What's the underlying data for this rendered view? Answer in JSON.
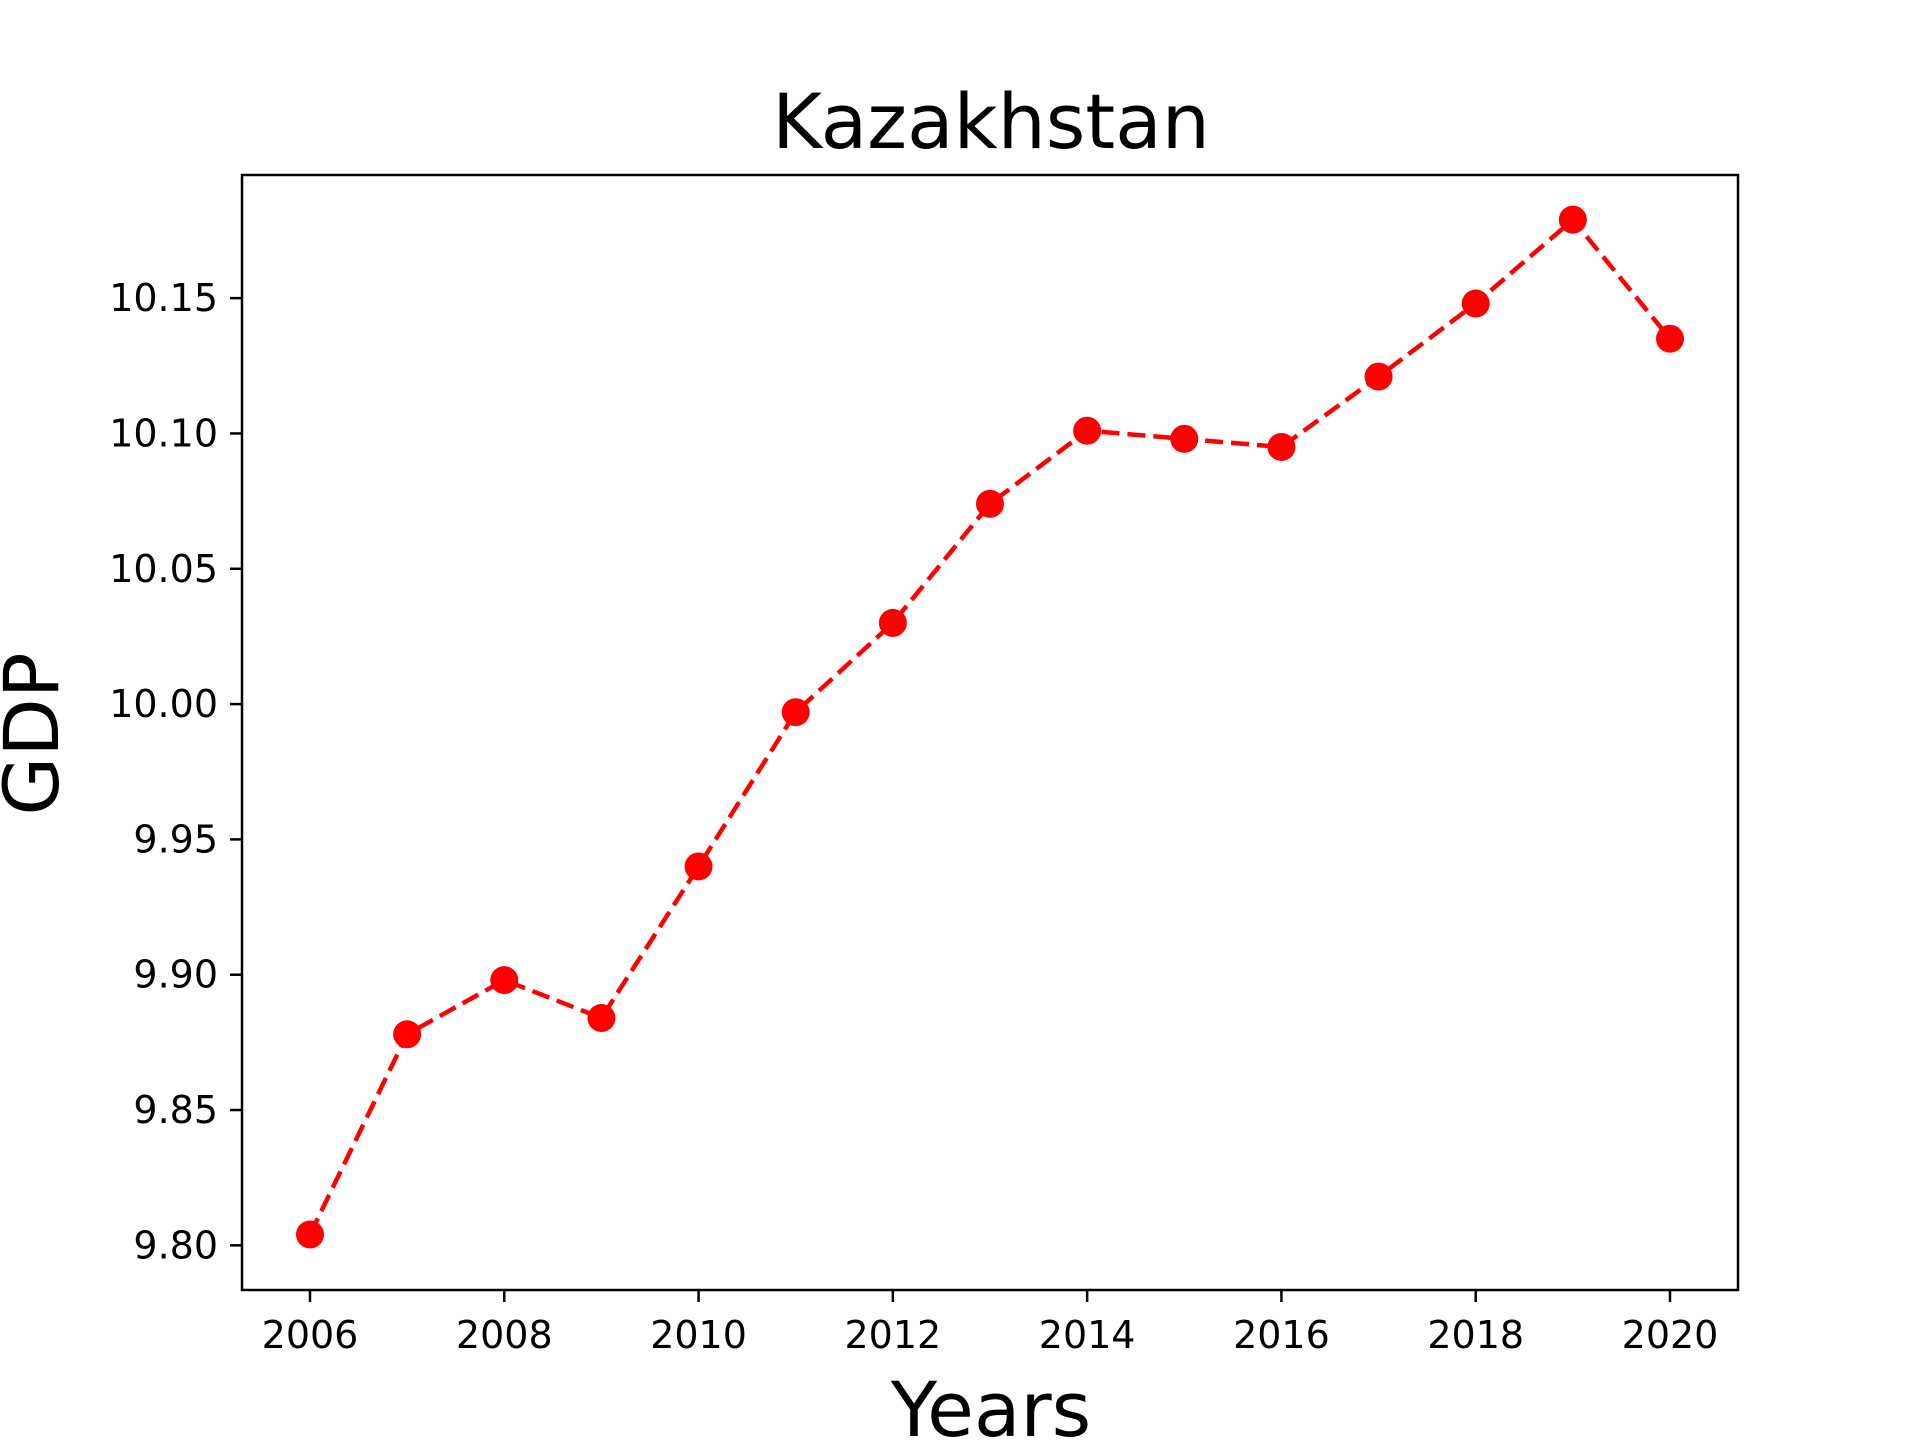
{
  "chart_data": {
    "type": "line",
    "title": "Kazakhstan",
    "xlabel": "Years",
    "ylabel": "GDP",
    "x": [
      2006,
      2007,
      2008,
      2009,
      2010,
      2011,
      2012,
      2013,
      2014,
      2015,
      2016,
      2017,
      2018,
      2019,
      2020
    ],
    "series": [
      {
        "values": [
          9.804,
          9.878,
          9.898,
          9.884,
          9.94,
          9.997,
          10.03,
          10.074,
          10.101,
          10.098,
          10.095,
          10.121,
          10.148,
          10.179,
          10.135
        ],
        "color": "#ff0000",
        "line_style": "dashed",
        "marker": "circle"
      }
    ],
    "xticks": [
      "2006",
      "2008",
      "2010",
      "2012",
      "2014",
      "2016",
      "2018",
      "2020"
    ],
    "yticks": [
      "9.80",
      "9.85",
      "9.90",
      "9.95",
      "10.00",
      "10.05",
      "10.10",
      "10.15"
    ],
    "xlim": [
      2005.3,
      2020.7
    ],
    "ylim": [
      9.7835,
      10.1955
    ],
    "grid": false,
    "legend": false
  }
}
